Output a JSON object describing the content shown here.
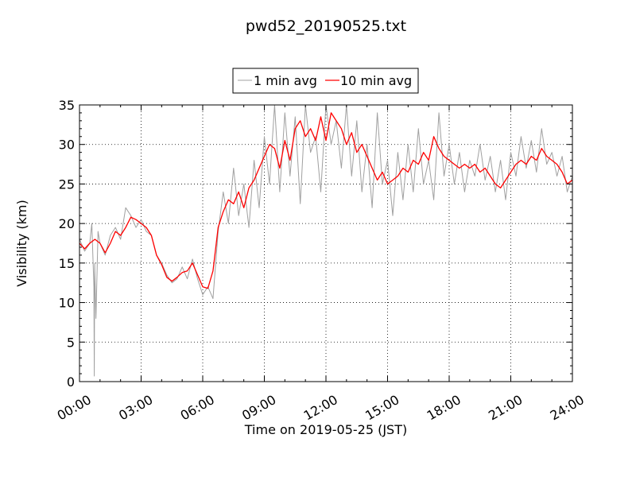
{
  "chart_data": {
    "type": "line",
    "title": "pwd52_20190525.txt",
    "xlabel": "Time on 2019-05-25 (JST)",
    "ylabel": "Visibility (km)",
    "xlim": [
      "00:00",
      "24:00"
    ],
    "ylim": [
      0,
      35
    ],
    "grid": true,
    "legend_position": "top-center",
    "x_ticks": [
      "00:00",
      "03:00",
      "06:00",
      "09:00",
      "12:00",
      "15:00",
      "18:00",
      "21:00",
      "24:00"
    ],
    "y_ticks": [
      "0",
      "5",
      "10",
      "15",
      "20",
      "25",
      "30",
      "35"
    ],
    "x_unit": "hours",
    "series": [
      {
        "name": "1 min avg",
        "color": "#a0a0a0",
        "x": [
          0,
          0.25,
          0.5,
          0.6,
          0.7,
          0.72,
          0.74,
          0.8,
          0.9,
          1.0,
          1.25,
          1.5,
          1.75,
          2.0,
          2.25,
          2.5,
          2.75,
          3.0,
          3.25,
          3.5,
          3.75,
          4.0,
          4.25,
          4.5,
          4.75,
          5.0,
          5.25,
          5.5,
          5.75,
          6.0,
          6.25,
          6.5,
          6.75,
          7.0,
          7.25,
          7.5,
          7.75,
          8.0,
          8.25,
          8.5,
          8.75,
          9.0,
          9.25,
          9.5,
          9.75,
          10.0,
          10.25,
          10.5,
          10.75,
          11.0,
          11.25,
          11.5,
          11.75,
          12.0,
          12.25,
          12.5,
          12.75,
          13.0,
          13.25,
          13.5,
          13.75,
          14.0,
          14.25,
          14.5,
          14.75,
          15.0,
          15.25,
          15.5,
          15.75,
          16.0,
          16.25,
          16.5,
          16.75,
          17.0,
          17.25,
          17.5,
          17.75,
          18.0,
          18.25,
          18.5,
          18.75,
          19.0,
          19.25,
          19.5,
          19.75,
          20.0,
          20.25,
          20.5,
          20.75,
          21.0,
          21.25,
          21.5,
          21.75,
          22.0,
          22.25,
          22.5,
          22.75,
          23.0,
          23.25,
          23.5,
          23.75,
          24.0
        ],
        "y": [
          18.0,
          16.5,
          17.5,
          20.0,
          12.0,
          0.7,
          15.0,
          8.0,
          19.0,
          17.5,
          16.0,
          18.5,
          19.5,
          18.0,
          22.0,
          21.0,
          19.5,
          20.5,
          19.0,
          18.5,
          16.0,
          15.0,
          13.5,
          12.5,
          13.0,
          14.5,
          13.0,
          15.5,
          13.0,
          11.0,
          12.0,
          10.5,
          19.0,
          24.0,
          20.0,
          27.0,
          21.0,
          25.0,
          19.5,
          28.0,
          22.0,
          31.0,
          25.0,
          35.0,
          24.0,
          34.0,
          26.0,
          33.5,
          22.5,
          35.0,
          29.0,
          31.0,
          24.0,
          35.0,
          30.0,
          33.0,
          27.0,
          35.0,
          26.0,
          33.0,
          24.0,
          30.0,
          22.0,
          34.0,
          25.0,
          28.0,
          21.0,
          29.0,
          23.0,
          30.0,
          24.0,
          32.0,
          25.0,
          28.0,
          23.0,
          34.0,
          26.0,
          30.0,
          25.0,
          29.0,
          24.0,
          28.0,
          26.0,
          30.0,
          25.5,
          28.5,
          24.0,
          28.0,
          23.0,
          29.0,
          26.0,
          31.0,
          27.0,
          30.5,
          26.5,
          32.0,
          27.5,
          29.0,
          26.0,
          28.5,
          24.0,
          26.0
        ]
      },
      {
        "name": "10 min avg",
        "color": "#ff0000",
        "x": [
          0,
          0.25,
          0.5,
          0.75,
          1.0,
          1.25,
          1.5,
          1.75,
          2.0,
          2.25,
          2.5,
          2.75,
          3.0,
          3.25,
          3.5,
          3.75,
          4.0,
          4.25,
          4.5,
          4.75,
          5.0,
          5.25,
          5.5,
          5.75,
          6.0,
          6.25,
          6.5,
          6.75,
          7.0,
          7.25,
          7.5,
          7.75,
          8.0,
          8.25,
          8.5,
          8.75,
          9.0,
          9.25,
          9.5,
          9.75,
          10.0,
          10.25,
          10.5,
          10.75,
          11.0,
          11.25,
          11.5,
          11.75,
          12.0,
          12.25,
          12.5,
          12.75,
          13.0,
          13.25,
          13.5,
          13.75,
          14.0,
          14.25,
          14.5,
          14.75,
          15.0,
          15.25,
          15.5,
          15.75,
          16.0,
          16.25,
          16.5,
          16.75,
          17.0,
          17.25,
          17.5,
          17.75,
          18.0,
          18.25,
          18.5,
          18.75,
          19.0,
          19.25,
          19.5,
          19.75,
          20.0,
          20.25,
          20.5,
          20.75,
          21.0,
          21.25,
          21.5,
          21.75,
          22.0,
          22.25,
          22.5,
          22.75,
          23.0,
          23.25,
          23.5,
          23.75,
          24.0
        ],
        "y": [
          17.5,
          16.8,
          17.5,
          18.0,
          17.5,
          16.3,
          17.5,
          19.0,
          18.5,
          19.5,
          20.8,
          20.5,
          20.0,
          19.5,
          18.5,
          16.0,
          14.8,
          13.2,
          12.7,
          13.2,
          13.8,
          14.0,
          15.0,
          13.5,
          12.0,
          11.8,
          14.0,
          19.5,
          21.5,
          23.0,
          22.5,
          24.0,
          22.0,
          24.5,
          25.5,
          27.0,
          28.5,
          30.0,
          29.5,
          27.0,
          30.5,
          28.0,
          32.0,
          33.0,
          31.0,
          32.0,
          30.5,
          33.5,
          30.5,
          34.0,
          33.0,
          32.0,
          30.0,
          31.5,
          29.0,
          30.0,
          28.5,
          27.0,
          25.5,
          26.5,
          25.0,
          25.5,
          26.0,
          27.0,
          26.5,
          28.0,
          27.5,
          29.0,
          28.0,
          31.0,
          29.5,
          28.5,
          28.0,
          27.5,
          27.0,
          27.5,
          27.0,
          27.5,
          26.5,
          27.0,
          26.0,
          25.0,
          24.5,
          25.5,
          26.5,
          27.5,
          28.0,
          27.5,
          28.5,
          28.0,
          29.5,
          28.5,
          28.0,
          27.5,
          26.5,
          25.0,
          25.5
        ]
      }
    ]
  }
}
